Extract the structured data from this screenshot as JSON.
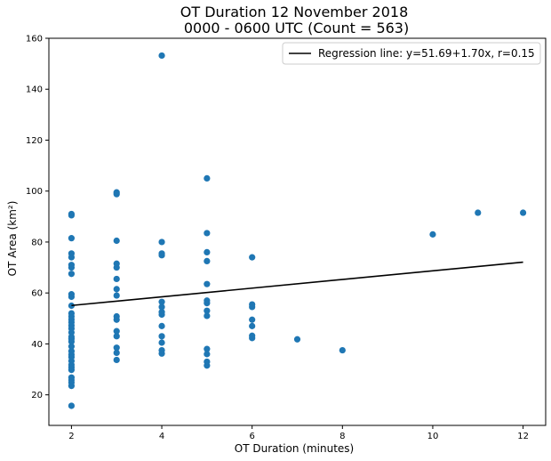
{
  "chart_data": {
    "type": "scatter",
    "title_line1": "OT Duration 12 November 2018",
    "title_line2": " 0000 - 0600 UTC (Count = 563)",
    "xlabel": "OT Duration (minutes)",
    "ylabel": "OT Area (km²)",
    "xlim": [
      1.5,
      12.5
    ],
    "ylim": [
      8,
      160
    ],
    "xticks": [
      2,
      4,
      6,
      8,
      10,
      12
    ],
    "yticks": [
      20,
      40,
      60,
      80,
      100,
      120,
      140,
      160
    ],
    "grid": false,
    "legend_position": "top-right",
    "point_color": "#1f77b4",
    "line_color": "#000000",
    "regression": {
      "label": "Regression line: y=51.69+1.70x, r=0.15",
      "intercept": 51.69,
      "slope": 1.7,
      "x_range": [
        2,
        12
      ]
    },
    "points": [
      [
        2,
        15.7
      ],
      [
        2,
        23.5
      ],
      [
        2,
        24.8
      ],
      [
        2,
        25.8
      ],
      [
        2,
        26.8
      ],
      [
        2,
        29.8
      ],
      [
        2,
        30.8
      ],
      [
        2,
        31.8
      ],
      [
        2,
        33.3
      ],
      [
        2,
        34.8
      ],
      [
        2,
        35.8
      ],
      [
        2,
        37.1
      ],
      [
        2,
        39.0
      ],
      [
        2,
        40.9
      ],
      [
        2,
        42.0
      ],
      [
        2,
        42.8
      ],
      [
        2,
        44.5
      ],
      [
        2,
        46.0
      ],
      [
        2,
        47.2
      ],
      [
        2,
        48.5
      ],
      [
        2,
        49.6
      ],
      [
        2,
        50.8
      ],
      [
        2,
        52.0
      ],
      [
        2,
        55.0
      ],
      [
        2,
        58.5
      ],
      [
        2,
        59.5
      ],
      [
        2,
        67.5
      ],
      [
        2,
        70.0
      ],
      [
        2,
        71.0
      ],
      [
        2,
        74.0
      ],
      [
        2,
        75.5
      ],
      [
        2,
        81.5
      ],
      [
        2,
        90.5
      ],
      [
        2,
        91.0
      ],
      [
        3,
        33.7
      ],
      [
        3,
        36.5
      ],
      [
        3,
        38.5
      ],
      [
        3,
        43.0
      ],
      [
        3,
        45.0
      ],
      [
        3,
        49.5
      ],
      [
        3,
        50.8
      ],
      [
        3,
        59.0
      ],
      [
        3,
        61.5
      ],
      [
        3,
        65.5
      ],
      [
        3,
        70.0
      ],
      [
        3,
        71.5
      ],
      [
        3,
        80.5
      ],
      [
        3,
        98.8
      ],
      [
        3,
        99.5
      ],
      [
        4,
        36.2
      ],
      [
        4,
        37.5
      ],
      [
        4,
        40.5
      ],
      [
        4,
        43.0
      ],
      [
        4,
        47.0
      ],
      [
        4,
        51.5
      ],
      [
        4,
        52.5
      ],
      [
        4,
        54.5
      ],
      [
        4,
        56.5
      ],
      [
        4,
        74.8
      ],
      [
        4,
        75.5
      ],
      [
        4,
        80.0
      ],
      [
        4,
        153.2
      ],
      [
        5,
        31.5
      ],
      [
        5,
        33.0
      ],
      [
        5,
        36.0
      ],
      [
        5,
        38.0
      ],
      [
        5,
        51.0
      ],
      [
        5,
        53.0
      ],
      [
        5,
        56.0
      ],
      [
        5,
        57.0
      ],
      [
        5,
        63.5
      ],
      [
        5,
        72.5
      ],
      [
        5,
        76.0
      ],
      [
        5,
        83.5
      ],
      [
        5,
        105.0
      ],
      [
        6,
        42.3
      ],
      [
        6,
        43.2
      ],
      [
        6,
        47.0
      ],
      [
        6,
        49.5
      ],
      [
        6,
        54.5
      ],
      [
        6,
        55.5
      ],
      [
        6,
        74.0
      ],
      [
        7,
        41.8
      ],
      [
        8,
        37.5
      ],
      [
        10,
        83.0
      ],
      [
        11,
        91.5
      ],
      [
        12,
        91.5
      ]
    ]
  }
}
